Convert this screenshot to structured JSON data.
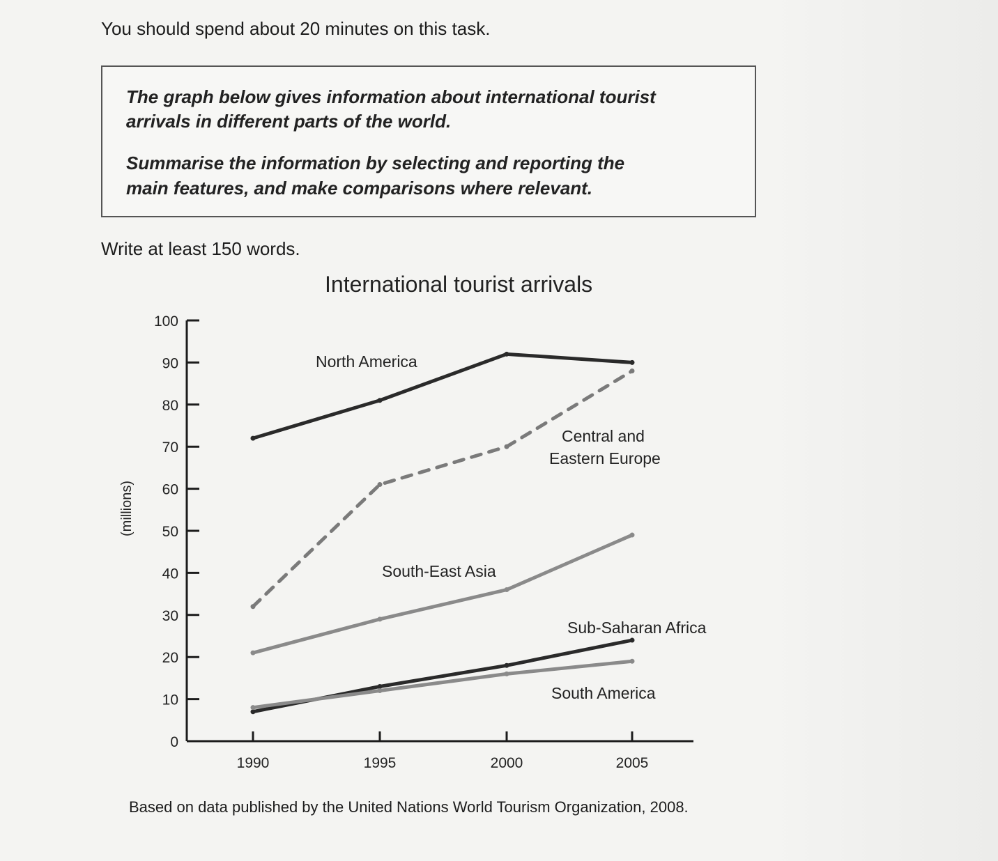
{
  "intro": "You should spend about 20 minutes on this task.",
  "task": {
    "line1": "The graph below gives information about international tourist",
    "line2": "arrivals in different parts of the world.",
    "line3": "Summarise the information by selecting and reporting the",
    "line4": "main features, and make comparisons where relevant."
  },
  "word_count": "Write at least 150 words.",
  "source_note": "Based on data published by the United Nations World Tourism Organization, 2008.",
  "chart_data": {
    "type": "line",
    "title": "International tourist arrivals",
    "ylabel": "(millions)",
    "xlabel": "",
    "x": [
      1990,
      1995,
      2000,
      2005
    ],
    "xticks": [
      "1990",
      "1995",
      "2000",
      "2005"
    ],
    "yticks": [
      "0",
      "10",
      "20",
      "30",
      "40",
      "50",
      "60",
      "70",
      "80",
      "90",
      "100"
    ],
    "ylim": [
      0,
      100
    ],
    "grid": false,
    "legend": "none",
    "series": [
      {
        "name": "North America",
        "values": [
          72,
          81,
          92,
          90
        ],
        "color": "#2a2a2a",
        "dashed": false
      },
      {
        "name": "Central and Eastern Europe",
        "label_lines": [
          "Central and",
          "Eastern Europe"
        ],
        "values": [
          32,
          61,
          70,
          88
        ],
        "color": "#7a7a7a",
        "dashed": true
      },
      {
        "name": "South-East Asia",
        "values": [
          21,
          29,
          36,
          49
        ],
        "color": "#8a8a8a",
        "dashed": false
      },
      {
        "name": "Sub-Saharan Africa",
        "values": [
          7,
          13,
          18,
          24
        ],
        "color": "#2a2a2a",
        "dashed": false
      },
      {
        "name": "South America",
        "values": [
          8,
          12,
          16,
          19
        ],
        "color": "#8a8a8a",
        "dashed": false
      }
    ]
  }
}
